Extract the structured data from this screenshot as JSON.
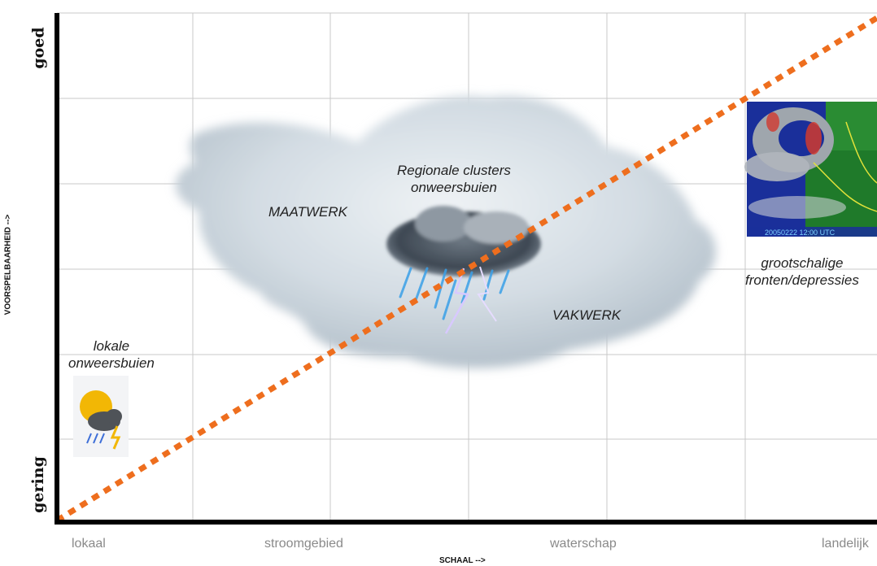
{
  "y_axis": {
    "title": "VOORSPELBAARHEID -->",
    "high_label": "goed",
    "low_label": "gering"
  },
  "x_axis": {
    "title": "SCHAAL -->",
    "ticks": [
      "lokaal",
      "stroomgebied",
      "waterschap",
      "landelijk"
    ]
  },
  "regions": {
    "maatwerk": "MAATWERK",
    "vakwerk": "VAKWERK",
    "regional": "Regionale clusters\nonweersbuien",
    "local": "lokale\nonweersbuien",
    "large_scale": "grootschalige\nfronten/depressies"
  },
  "colors": {
    "diagonal": "#ee6e1e",
    "axis": "#000000",
    "grid": "#c8c8c8",
    "cloud": "#c9d3db"
  },
  "icons": {
    "local_icon": "sun-cloud-rain-icon",
    "storm_icon": "thundercloud-lightning-icon",
    "satellite_image": "satellite-map-image"
  },
  "satellite_overlay_text": "20050222 12:00 UTC"
}
